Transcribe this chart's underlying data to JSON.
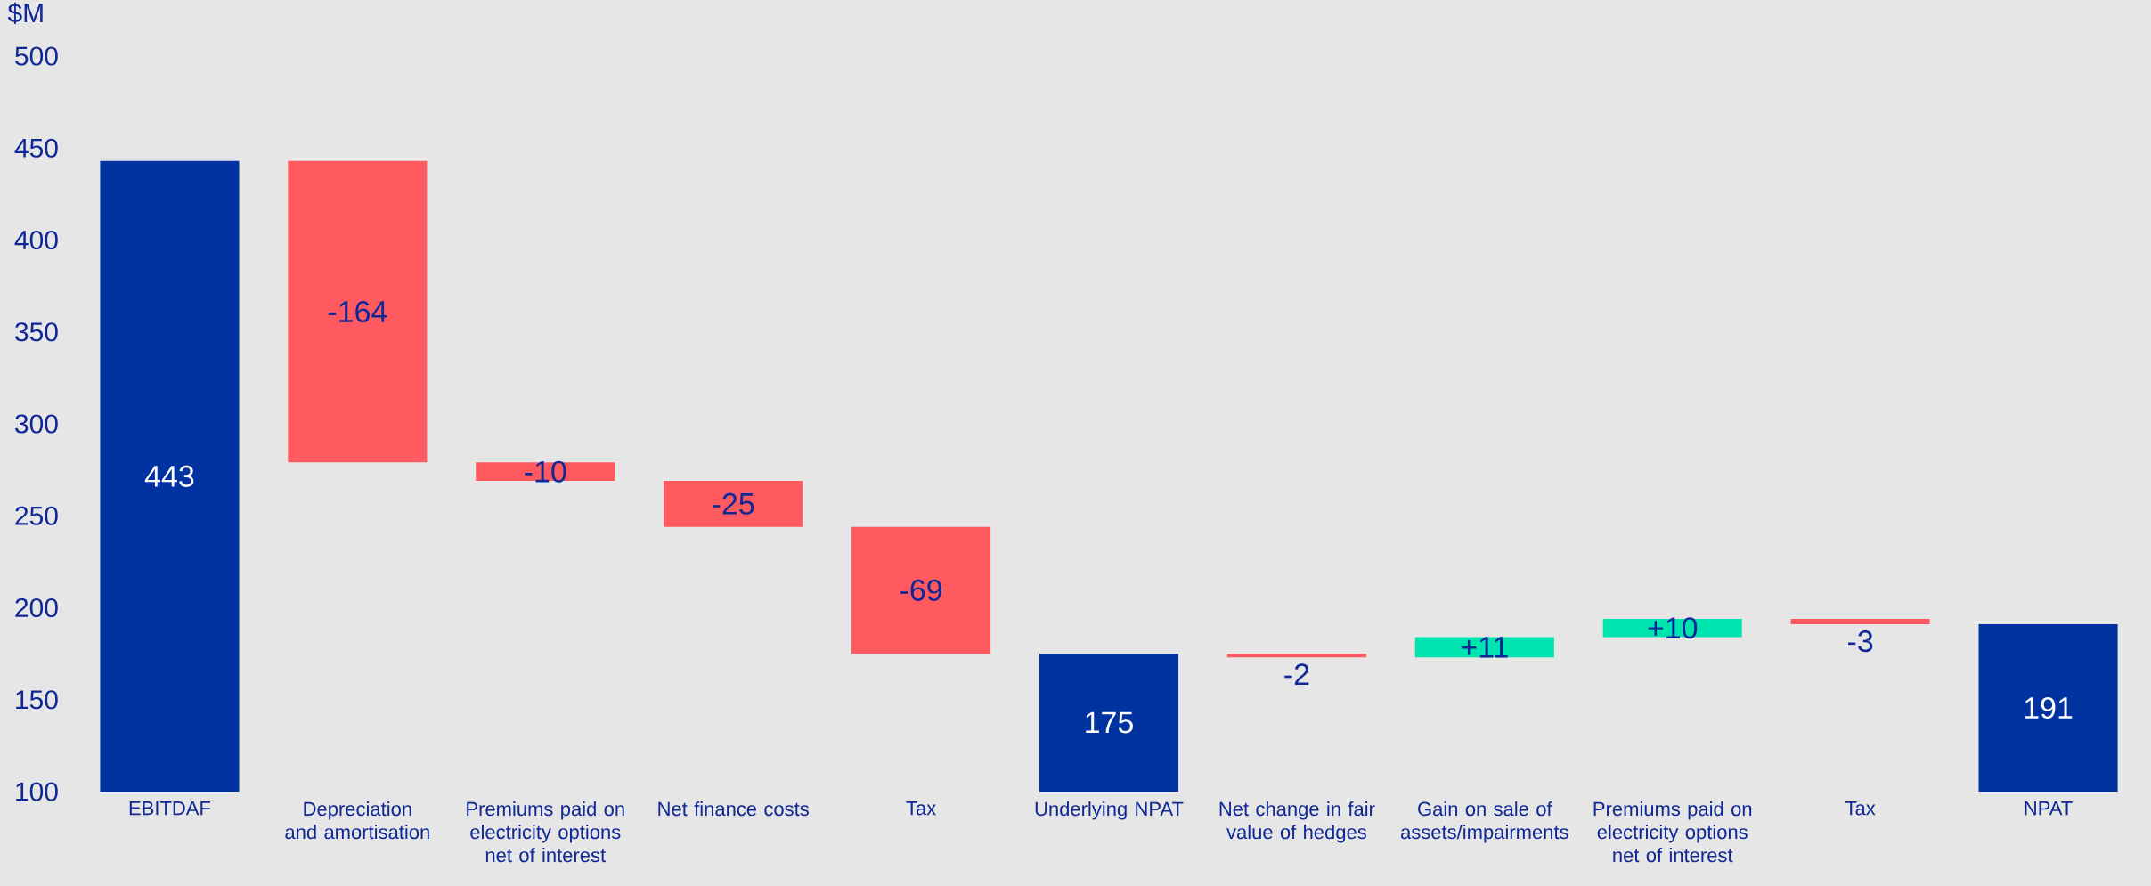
{
  "chart_data": {
    "type": "bar",
    "ylabel": "$M",
    "categories": [
      "EBITDAF",
      "Depreciation and amortisation",
      "Premiums paid on electricity options net of interest",
      "Net finance costs",
      "Tax",
      "Underlying NPAT",
      "Net change in fair value of hedges",
      "Gain on sale of assets/impairments",
      "Premiums paid on electricity options net of interest",
      "Tax",
      "NPAT"
    ],
    "values": [
      443,
      -164,
      -10,
      -25,
      -69,
      175,
      -2,
      11,
      10,
      -3,
      191
    ],
    "base": [
      null,
      443,
      279,
      269,
      244,
      null,
      175,
      173,
      184,
      194,
      null
    ],
    "colors": [
      "#0033a0",
      "#ff5a5f",
      "#ff5a5f",
      "#ff5a5f",
      "#ff5a5f",
      "#0033a0",
      "#ff5a5f",
      "#00e5b0",
      "#00e5b0",
      "#ff5a5f",
      "#0033a0"
    ],
    "value_labels": [
      "443",
      "-164",
      "-10",
      "-25",
      "-69",
      "175",
      "-2",
      "+11",
      "+10",
      "-3",
      "191"
    ],
    "ylim": [
      100,
      500
    ],
    "yticks": [
      100,
      150,
      200,
      250,
      300,
      350,
      400,
      450,
      500
    ]
  }
}
